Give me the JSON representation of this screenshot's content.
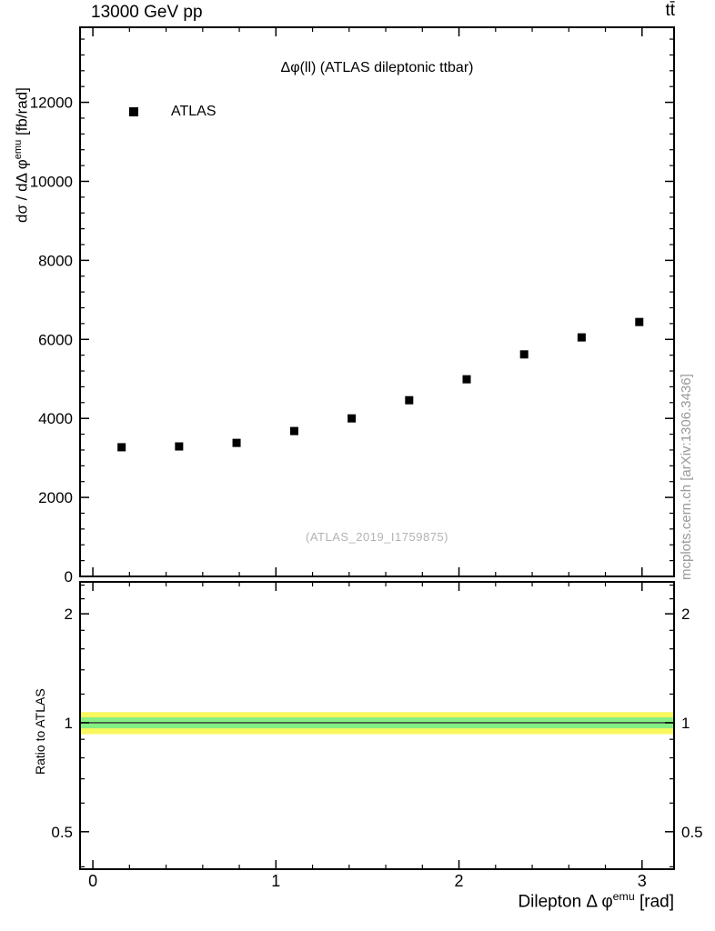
{
  "header": {
    "left_title": "13000 GeV pp",
    "right_title": "tt̄"
  },
  "main_panel": {
    "inner_title": "Δφ(ll) (ATLAS dileptonic ttbar)",
    "legend": {
      "marker_icon": "filled-black-square",
      "label": "ATLAS"
    },
    "watermark": "(ATLAS_2019_I1759875)",
    "ylabel": {
      "prefix": "dσ / dΔ φ",
      "sup": "emu",
      "suffix": " [fb/rad]"
    }
  },
  "ratio_panel": {
    "ylabel": "Ratio to ATLAS"
  },
  "xlabel": {
    "prefix": "Dilepton Δ φ",
    "sup": "emu",
    "suffix": " [rad]"
  },
  "side_note": "mcplots.cern.ch [arXiv:1306.3436]",
  "chart_data": [
    {
      "type": "scatter",
      "panel": "main",
      "title": "Δφ(ll) (ATLAS dileptonic ttbar)",
      "xlabel": "Dilepton Δφ^emu [rad]",
      "ylabel": "dσ/dΔφ^emu [fb/rad]",
      "xlim": [
        -0.07,
        3.175
      ],
      "ylim": [
        0,
        13900
      ],
      "x_major_ticks": [
        0,
        1,
        2,
        3
      ],
      "x_minor_step": 0.2,
      "y_major_ticks": [
        0,
        2000,
        4000,
        6000,
        8000,
        10000,
        12000
      ],
      "y_minor_step": 400,
      "grid": false,
      "legend_position": "top-left",
      "series": [
        {
          "name": "ATLAS",
          "marker": "filled-square",
          "color": "#000000",
          "marker_size": 9,
          "x": [
            0.157,
            0.471,
            0.785,
            1.1,
            1.414,
            1.728,
            2.042,
            2.356,
            2.67,
            2.985
          ],
          "y": [
            3270,
            3290,
            3380,
            3680,
            4000,
            4460,
            4990,
            5620,
            6050,
            6440
          ]
        }
      ]
    },
    {
      "type": "band",
      "panel": "ratio",
      "title": "Ratio to ATLAS",
      "yscale": "log",
      "xlim": [
        -0.07,
        3.175
      ],
      "ylim": [
        0.394,
        2.45
      ],
      "x_major_ticks": [
        0,
        1,
        2,
        3
      ],
      "x_tick_labels": [
        "0",
        "1",
        "2",
        "3"
      ],
      "x_minor_step": 0.2,
      "y_major_ticks": [
        0.5,
        1,
        2
      ],
      "y_minor_ticks": [
        0.4,
        0.6,
        0.7,
        0.8,
        0.9,
        1.2,
        1.4,
        1.6,
        1.8,
        2.2,
        2.4
      ],
      "bands": [
        {
          "name": "uncertainty-band-outer",
          "color": "#f8f75e",
          "lo": 0.93,
          "hi": 1.07
        },
        {
          "name": "uncertainty-band-inner",
          "color": "#86ef84",
          "lo": 0.965,
          "hi": 1.035
        }
      ],
      "reference_line": {
        "y": 1,
        "color": "#333333"
      }
    }
  ]
}
